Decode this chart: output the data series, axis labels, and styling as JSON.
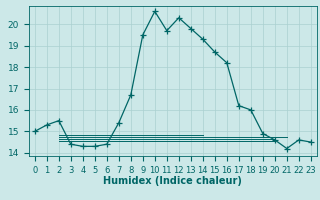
{
  "x_main": [
    0,
    1,
    2,
    3,
    4,
    5,
    6,
    7,
    8,
    9,
    10,
    11,
    12,
    13,
    14,
    15,
    16,
    17,
    18,
    19,
    20,
    21,
    22,
    23
  ],
  "y_main": [
    15.0,
    15.3,
    15.5,
    14.4,
    14.3,
    14.3,
    14.4,
    15.4,
    16.7,
    19.5,
    20.6,
    19.7,
    20.3,
    19.8,
    19.3,
    18.7,
    18.2,
    16.2,
    16.0,
    14.9,
    14.6,
    14.2,
    14.6,
    14.5
  ],
  "flat_lines": [
    {
      "x": [
        2,
        20
      ],
      "y": [
        14.65,
        14.65
      ]
    },
    {
      "x": [
        2,
        20
      ],
      "y": [
        14.55,
        14.55
      ]
    },
    {
      "x": [
        2,
        21
      ],
      "y": [
        14.75,
        14.75
      ]
    },
    {
      "x": [
        2,
        14
      ],
      "y": [
        14.85,
        14.85
      ]
    }
  ],
  "bg_color": "#cce8e8",
  "grid_color": "#aad0d0",
  "line_color": "#006666",
  "marker": "+",
  "markersize": 4,
  "linewidth": 0.9,
  "flat_linewidth": 0.7,
  "xlabel": "Humidex (Indice chaleur)",
  "xlabel_fontsize": 7,
  "tick_fontsize": 6,
  "xlim": [
    -0.5,
    23.5
  ],
  "ylim": [
    13.85,
    20.85
  ],
  "yticks": [
    14,
    15,
    16,
    17,
    18,
    19,
    20
  ],
  "xticks": [
    0,
    1,
    2,
    3,
    4,
    5,
    6,
    7,
    8,
    9,
    10,
    11,
    12,
    13,
    14,
    15,
    16,
    17,
    18,
    19,
    20,
    21,
    22,
    23
  ]
}
